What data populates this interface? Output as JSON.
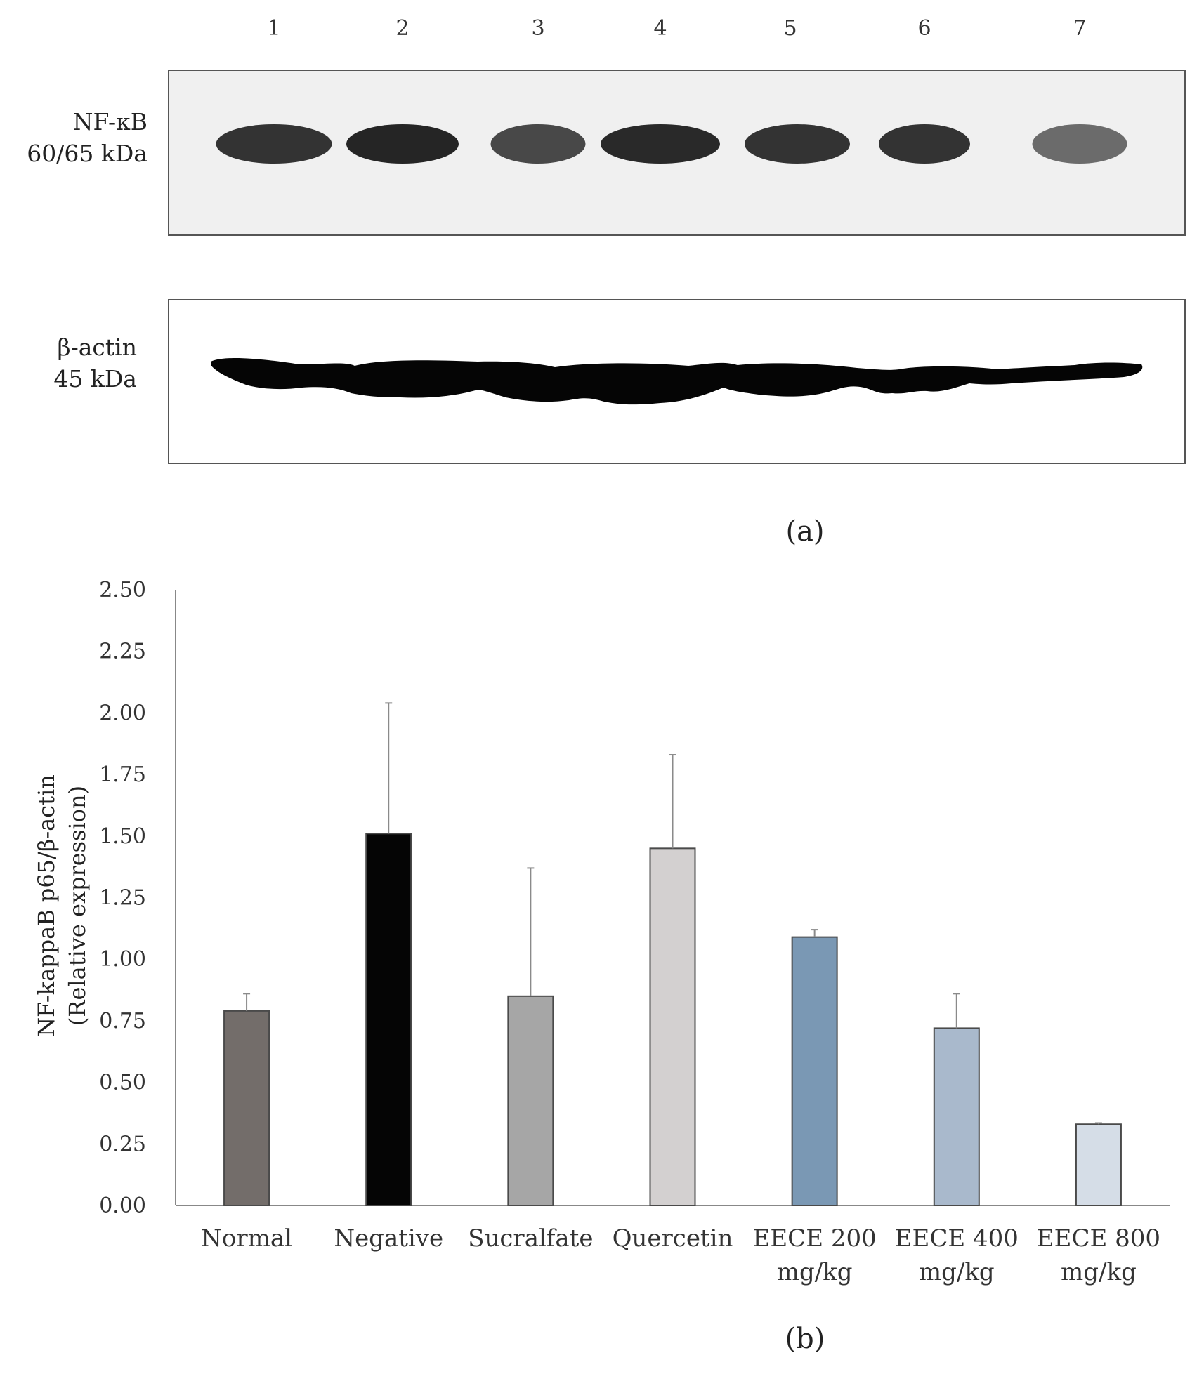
{
  "panel_a": {
    "lanes": [
      "1",
      "2",
      "3",
      "4",
      "5",
      "6",
      "7"
    ],
    "blot_top": {
      "label_lines": [
        "NF-κB",
        "60/65 kDa"
      ],
      "band_intensity": [
        0.85,
        0.95,
        0.7,
        0.92,
        0.85,
        0.85,
        0.45
      ]
    },
    "blot_bottom": {
      "label_lines": [
        "β-actin",
        "45 kDa"
      ]
    },
    "caption": "(a)"
  },
  "chart_data": {
    "type": "bar",
    "categories": [
      [
        "Normal"
      ],
      [
        "Negative"
      ],
      [
        "Sucralfate"
      ],
      [
        "Quercetin"
      ],
      [
        "EECE 200",
        "mg/kg"
      ],
      [
        "EECE 400",
        "mg/kg"
      ],
      [
        "EECE 800",
        "mg/kg"
      ]
    ],
    "values": [
      0.79,
      1.51,
      0.85,
      1.45,
      1.09,
      0.72,
      0.33
    ],
    "errors": [
      0.07,
      0.53,
      0.52,
      0.38,
      0.03,
      0.14,
      0.005
    ],
    "colors": [
      "#736d6a",
      "#050505",
      "#a6a6a6",
      "#d3d0d0",
      "#7a98b4",
      "#a9b9cc",
      "#d5dde7"
    ],
    "ylabel_lines": [
      "NF-kappaB p65/β-actin",
      "(Relative expression)"
    ],
    "ylim": [
      0,
      2.5
    ],
    "yticks": [
      "0.00",
      "0.25",
      "0.50",
      "0.75",
      "1.00",
      "1.25",
      "1.50",
      "1.75",
      "2.00",
      "2.25",
      "2.50"
    ],
    "grid": false,
    "caption": "(b)"
  }
}
